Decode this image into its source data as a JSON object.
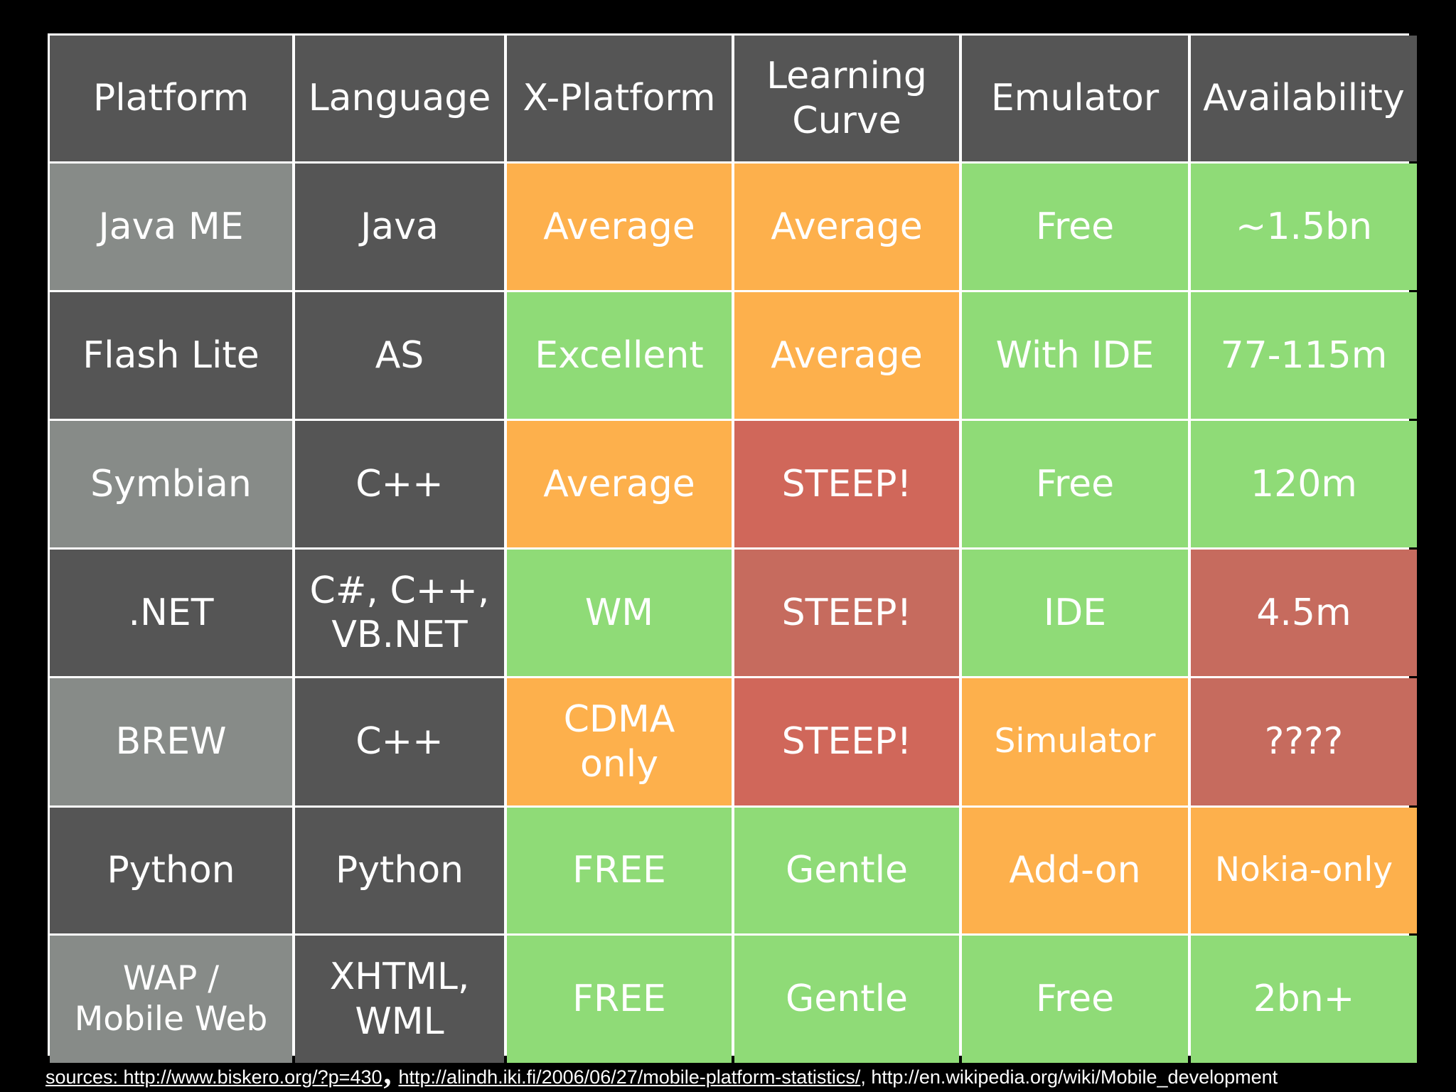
{
  "table": {
    "headers": [
      "Platform",
      "Language",
      "X-Platform",
      "Learning\nCurve",
      "Emulator",
      "Availability"
    ],
    "rows": [
      {
        "platform": "Java ME",
        "language": "Java",
        "x_platform": "Average",
        "learning_curve": "Average",
        "emulator": "Free",
        "availability": "~1.5bn"
      },
      {
        "platform": "Flash Lite",
        "language": "AS",
        "x_platform": "Excellent",
        "learning_curve": "Average",
        "emulator": "With IDE",
        "availability": "77-115m"
      },
      {
        "platform": "Symbian",
        "language": "C++",
        "x_platform": "Average",
        "learning_curve": "STEEP!",
        "emulator": "Free",
        "availability": "120m"
      },
      {
        "platform": ".NET",
        "language": "C#, C++,\nVB.NET",
        "x_platform": "WM",
        "learning_curve": "STEEP!",
        "emulator": "IDE",
        "availability": "4.5m"
      },
      {
        "platform": "BREW",
        "language": "C++",
        "x_platform": "CDMA\nonly",
        "learning_curve": "STEEP!",
        "emulator": "Simulator",
        "availability": "????"
      },
      {
        "platform": "Python",
        "language": "Python",
        "x_platform": "FREE",
        "learning_curve": "Gentle",
        "emulator": "Add-on",
        "availability": "Nokia-only"
      },
      {
        "platform": "WAP /\nMobile Web",
        "language": "XHTML,\nWML",
        "x_platform": "FREE",
        "learning_curve": "Gentle",
        "emulator": "Free",
        "availability": "2bn+"
      }
    ]
  },
  "sources": {
    "link1": "sources: http://www.biskero.org/?p=430",
    "comma": ",",
    "link2": "http://alindh.iki.fi/2006/06/27/mobile-platform-statistics/",
    "sep": ",",
    "link3": " http://en.wikipedia.org/wiki/Mobile_development"
  },
  "colors": {
    "header": "#555555",
    "platform_dark": "#555555",
    "platform_grey": "#878b88",
    "orange": "#fdb04c",
    "green": "#8fdb77",
    "red": "#d0675a",
    "red_muted": "#c66b5e",
    "background": "#000000",
    "grid_lines": "#ffffff"
  }
}
